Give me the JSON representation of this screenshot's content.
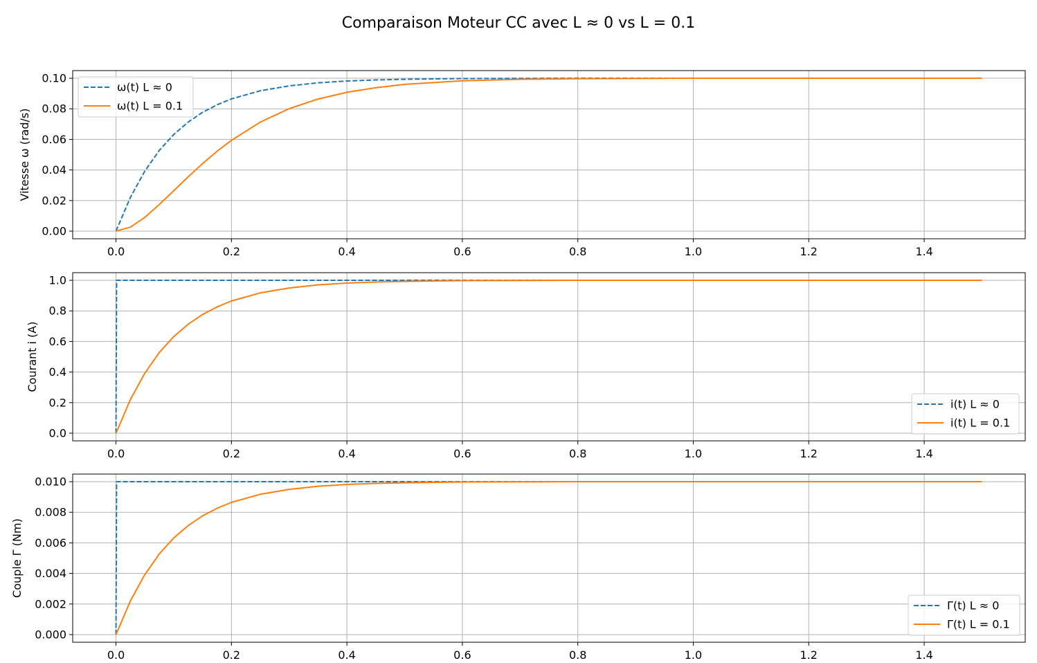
{
  "title": "Comparaison Moteur CC avec L ≈ 0 vs L = 0.1",
  "colors": {
    "blue": "#1f77b4",
    "orange": "#ff7f0e",
    "grid": "#b0b0b0"
  },
  "chart_data": [
    {
      "type": "line",
      "ylabel": "Vitesse ω (rad/s)",
      "xlim": [
        -0.075,
        1.575
      ],
      "ylim": [
        -0.005,
        0.105
      ],
      "xticks": [
        0.0,
        0.2,
        0.4,
        0.6,
        0.8,
        1.0,
        1.2,
        1.4
      ],
      "xtick_labels": [
        "0.0",
        "0.2",
        "0.4",
        "0.6",
        "0.8",
        "1.0",
        "1.2",
        "1.4"
      ],
      "yticks": [
        0.0,
        0.02,
        0.04,
        0.06,
        0.08,
        0.1
      ],
      "ytick_labels": [
        "0.00",
        "0.02",
        "0.04",
        "0.06",
        "0.08",
        "0.10"
      ],
      "grid": true,
      "legend_position": "upper-left",
      "series": [
        {
          "name": "ω(t) L ≈ 0",
          "style": "dashed",
          "color": "#1f77b4",
          "x": [
            0,
            0.025,
            0.05,
            0.075,
            0.1,
            0.125,
            0.15,
            0.175,
            0.2,
            0.25,
            0.3,
            0.35,
            0.4,
            0.45,
            0.5,
            0.6,
            0.7,
            0.8,
            1.0,
            1.2,
            1.5
          ],
          "y": [
            0,
            0.0221,
            0.0393,
            0.0528,
            0.0632,
            0.0713,
            0.0777,
            0.0826,
            0.0865,
            0.0918,
            0.095,
            0.097,
            0.0982,
            0.0989,
            0.0993,
            0.0998,
            0.0999,
            0.1,
            0.1,
            0.1,
            0.1
          ]
        },
        {
          "name": "ω(t) L = 0.1",
          "style": "solid",
          "color": "#ff7f0e",
          "x": [
            0,
            0.025,
            0.05,
            0.075,
            0.1,
            0.125,
            0.15,
            0.175,
            0.2,
            0.25,
            0.3,
            0.35,
            0.4,
            0.45,
            0.5,
            0.6,
            0.7,
            0.8,
            1.0,
            1.2,
            1.5
          ],
          "y": [
            0,
            0.0026,
            0.009,
            0.0174,
            0.0264,
            0.0355,
            0.0442,
            0.0522,
            0.0594,
            0.0713,
            0.0801,
            0.0864,
            0.0908,
            0.0938,
            0.096,
            0.0983,
            0.0993,
            0.0997,
            0.1,
            0.1,
            0.1
          ]
        }
      ]
    },
    {
      "type": "line",
      "ylabel": "Courant i (A)",
      "xlim": [
        -0.075,
        1.575
      ],
      "ylim": [
        -0.05,
        1.05
      ],
      "xticks": [
        0.0,
        0.2,
        0.4,
        0.6,
        0.8,
        1.0,
        1.2,
        1.4
      ],
      "xtick_labels": [
        "0.0",
        "0.2",
        "0.4",
        "0.6",
        "0.8",
        "1.0",
        "1.2",
        "1.4"
      ],
      "yticks": [
        0.0,
        0.2,
        0.4,
        0.6,
        0.8,
        1.0
      ],
      "ytick_labels": [
        "0.0",
        "0.2",
        "0.4",
        "0.6",
        "0.8",
        "1.0"
      ],
      "grid": true,
      "legend_position": "lower-right",
      "series": [
        {
          "name": "i(t) L ≈ 0",
          "style": "dashed",
          "color": "#1f77b4",
          "x": [
            0,
            0.001,
            1.5
          ],
          "y": [
            0,
            1.0,
            1.0
          ]
        },
        {
          "name": "i(t) L = 0.1",
          "style": "solid",
          "color": "#ff7f0e",
          "x": [
            0,
            0.025,
            0.05,
            0.075,
            0.1,
            0.125,
            0.15,
            0.175,
            0.2,
            0.25,
            0.3,
            0.35,
            0.4,
            0.45,
            0.5,
            0.6,
            0.7,
            0.8,
            1.0,
            1.2,
            1.5
          ],
          "y": [
            0,
            0.221,
            0.393,
            0.528,
            0.632,
            0.713,
            0.777,
            0.826,
            0.865,
            0.918,
            0.95,
            0.97,
            0.982,
            0.989,
            0.993,
            0.998,
            0.999,
            1.0,
            1.0,
            1.0,
            1.0
          ]
        }
      ]
    },
    {
      "type": "line",
      "ylabel": "Couple Γ (Nm)",
      "xlim": [
        -0.075,
        1.575
      ],
      "ylim": [
        -0.0005,
        0.0105
      ],
      "xticks": [
        0.0,
        0.2,
        0.4,
        0.6,
        0.8,
        1.0,
        1.2,
        1.4
      ],
      "xtick_labels": [
        "0.0",
        "0.2",
        "0.4",
        "0.6",
        "0.8",
        "1.0",
        "1.2",
        "1.4"
      ],
      "yticks": [
        0.0,
        0.002,
        0.004,
        0.006,
        0.008,
        0.01
      ],
      "ytick_labels": [
        "0.000",
        "0.002",
        "0.004",
        "0.006",
        "0.008",
        "0.010"
      ],
      "grid": true,
      "legend_position": "lower-right",
      "series": [
        {
          "name": "Γ(t) L ≈ 0",
          "style": "dashed",
          "color": "#1f77b4",
          "x": [
            0,
            0.001,
            1.5
          ],
          "y": [
            0,
            0.01,
            0.01
          ]
        },
        {
          "name": "Γ(t) L = 0.1",
          "style": "solid",
          "color": "#ff7f0e",
          "x": [
            0,
            0.025,
            0.05,
            0.075,
            0.1,
            0.125,
            0.15,
            0.175,
            0.2,
            0.25,
            0.3,
            0.35,
            0.4,
            0.45,
            0.5,
            0.6,
            0.7,
            0.8,
            1.0,
            1.2,
            1.5
          ],
          "y": [
            0,
            0.00221,
            0.00393,
            0.00528,
            0.00632,
            0.00713,
            0.00777,
            0.00826,
            0.00865,
            0.00918,
            0.0095,
            0.0097,
            0.00982,
            0.00989,
            0.00993,
            0.00998,
            0.00999,
            0.01,
            0.01,
            0.01,
            0.01
          ]
        }
      ]
    }
  ]
}
